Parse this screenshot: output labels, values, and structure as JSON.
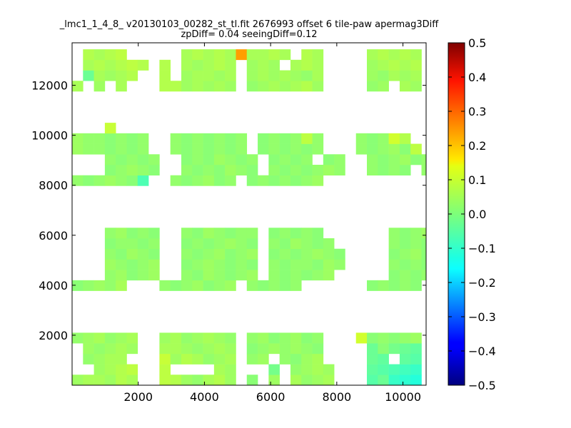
{
  "chart_data": {
    "type": "heatmap",
    "title": "_lmc1_1_4_8_ v20130103_00282_st_tl.fit 2676993 offset 6 tile-paw apermag3Diff",
    "subtitle": "zpDiff= 0.04 seeingDiff=0.12",
    "xlim": [
      0,
      10700
    ],
    "ylim": [
      0,
      13700
    ],
    "x_ticks": [
      2000,
      4000,
      6000,
      8000,
      10000
    ],
    "x_tick_labels": [
      "2000",
      "4000",
      "6000",
      "8000",
      "10000"
    ],
    "y_ticks": [
      2000,
      4000,
      6000,
      8000,
      10000,
      12000
    ],
    "y_tick_labels": [
      "2000",
      "4000",
      "6000",
      "8000",
      "10000",
      "12000"
    ],
    "colorbar": {
      "colormap": "jet",
      "range": [
        -0.5,
        0.5
      ],
      "ticks": [
        0.5,
        0.4,
        0.3,
        0.2,
        0.1,
        0.0,
        -0.1,
        -0.2,
        -0.3,
        -0.4,
        -0.5
      ],
      "tick_labels": [
        "0.5",
        "0.4",
        "0.3",
        "0.2",
        "0.1",
        "0.0",
        "−0.1",
        "−0.2",
        "−0.3",
        "−0.4",
        "−0.5"
      ]
    },
    "cell_size": [
      330,
      420
    ],
    "x_edges": [
      0,
      330,
      660,
      990,
      1320,
      1650,
      1980,
      2310,
      2640,
      2970,
      3300,
      3630,
      3960,
      4290,
      4620,
      4950,
      5280,
      5610,
      5940,
      6270,
      6600,
      6930,
      7260,
      7590,
      7920,
      8250,
      8580,
      8910,
      9240,
      9570,
      9900,
      10230,
      10560
    ],
    "y_edges": [
      0,
      420,
      840,
      1260,
      1680,
      2100,
      2520,
      2940,
      3360,
      3780,
      4200,
      4620,
      5040,
      5460,
      5880,
      6300,
      6720,
      7140,
      7560,
      7980,
      8400,
      8820,
      9240,
      9660,
      10080,
      10500,
      10920,
      11340,
      11760,
      12180,
      12600,
      13020,
      13440
    ],
    "grid": false,
    "rows": [
      {
        "y": 0,
        "x_start": 0,
        "values": [
          0.03,
          0.04,
          0.04,
          0.03,
          0.05,
          0.04,
          null,
          null,
          0.06,
          0.05,
          0.03,
          0.02,
          0.04,
          0.05,
          0.03,
          null,
          0.01,
          null,
          0.03,
          null,
          0.04,
          0.02,
          0.03,
          0.04,
          null,
          null,
          null,
          -0.04,
          -0.02,
          -0.07,
          -0.08,
          -0.09
        ]
      },
      {
        "y": 420,
        "x_start": 0,
        "values": [
          null,
          null,
          0.03,
          0.04,
          0.05,
          0.06,
          null,
          null,
          0.06,
          null,
          null,
          null,
          null,
          0.04,
          0.03,
          null,
          null,
          null,
          -0.01,
          null,
          0.02,
          0.03,
          0.04,
          0.03,
          null,
          null,
          null,
          -0.03,
          -0.04,
          -0.05,
          -0.06,
          -0.07
        ]
      },
      {
        "y": 840,
        "x_start": 0,
        "values": [
          null,
          0.02,
          0.03,
          0.04,
          0.04,
          null,
          null,
          null,
          0.07,
          0.03,
          0.05,
          0.04,
          0.02,
          0.03,
          0.04,
          null,
          0.02,
          0.03,
          null,
          0.02,
          0.01,
          0.03,
          0.04,
          null,
          null,
          null,
          null,
          -0.02,
          -0.03,
          null,
          -0.03,
          -0.04
        ]
      },
      {
        "y": 1260,
        "x_start": 0,
        "values": [
          null,
          0.03,
          0.02,
          0.03,
          0.04,
          0.03,
          null,
          null,
          0.04,
          0.04,
          0.03,
          0.02,
          0.03,
          0.04,
          0.03,
          null,
          0.01,
          0.02,
          0.03,
          0.02,
          0.03,
          0.02,
          0.01,
          null,
          null,
          null,
          null,
          -0.02,
          0.01,
          -0.01,
          -0.02,
          -0.03
        ]
      },
      {
        "y": 1680,
        "x_start": 0,
        "values": [
          0.02,
          0.03,
          0.04,
          0.02,
          0.03,
          0.04,
          null,
          null,
          0.03,
          0.04,
          0.02,
          0.03,
          0.04,
          0.03,
          0.02,
          null,
          0.02,
          0.03,
          0.01,
          0.02,
          0.03,
          0.01,
          0.02,
          null,
          null,
          null,
          0.08,
          0.01,
          0.02,
          0.01,
          0.02,
          0.03
        ]
      },
      {
        "y": 3780,
        "x_start": 0,
        "values": [
          0.01,
          0.02,
          0.03,
          0.02,
          0.04,
          null,
          null,
          null,
          0.02,
          0.01,
          0.02,
          0.03,
          0.01,
          0.02,
          0.03,
          null,
          0.02,
          0.01,
          0.02,
          0.01,
          0.02,
          null,
          null,
          null,
          null,
          null,
          null,
          0.01,
          0.02,
          0.01,
          0.02,
          0.01
        ]
      },
      {
        "y": 4200,
        "x_start": 990,
        "values": [
          0.02,
          0.03,
          0.01,
          0.02,
          0.03,
          null,
          null,
          0.02,
          0.01,
          0.03,
          0.02,
          0.01,
          0.02,
          0.03,
          null,
          0.02,
          0.01,
          0.02,
          0.01,
          0.02,
          0.03,
          null,
          null,
          null,
          null,
          null,
          0.01,
          0.02,
          0.01,
          0.02,
          0.01
        ]
      },
      {
        "y": 4620,
        "x_start": 990,
        "values": [
          0.03,
          0.02,
          0.01,
          0.02,
          0.03,
          null,
          null,
          0.01,
          0.02,
          0.03,
          0.02,
          0.01,
          0.02,
          0.01,
          null,
          0.02,
          0.01,
          0.02,
          0.02,
          0.01,
          0.03,
          0.02,
          null,
          null,
          null,
          null,
          0.02,
          0.01,
          0.02,
          0.01,
          0.02
        ]
      },
      {
        "y": 5040,
        "x_start": 990,
        "values": [
          0.02,
          0.01,
          0.03,
          0.02,
          0.01,
          null,
          null,
          0.02,
          0.01,
          0.02,
          0.03,
          0.01,
          0.02,
          0.03,
          null,
          0.01,
          0.02,
          0.01,
          0.02,
          0.03,
          0.02,
          0.01,
          null,
          null,
          null,
          null,
          0.01,
          0.02,
          0.03,
          0.01,
          0.02
        ]
      },
      {
        "y": 5460,
        "x_start": 990,
        "values": [
          0.01,
          0.02,
          0.02,
          0.01,
          0.02,
          null,
          null,
          0.01,
          0.02,
          0.01,
          0.02,
          0.03,
          0.02,
          0.01,
          null,
          0.02,
          0.01,
          0.03,
          0.02,
          0.01,
          0.02,
          null,
          null,
          null,
          null,
          null,
          0.02,
          0.01,
          0.02,
          0.01,
          0.02
        ]
      },
      {
        "y": 5880,
        "x_start": 990,
        "values": [
          0.02,
          0.03,
          0.01,
          0.02,
          0.01,
          null,
          null,
          0.02,
          0.01,
          0.03,
          0.02,
          0.01,
          0.02,
          0.02,
          null,
          0.01,
          0.02,
          0.01,
          0.02,
          0.01,
          null,
          null,
          null,
          null,
          null,
          null,
          0.02,
          0.01,
          0.02,
          0.03,
          0.01
        ]
      },
      {
        "y": 7980,
        "x_start": 0,
        "values": [
          0.02,
          0.01,
          0.02,
          0.03,
          0.02,
          0.01,
          -0.05,
          null,
          null,
          0.02,
          0.01,
          0.02,
          0.03,
          0.01,
          0.02,
          null,
          0.01,
          0.02,
          0.01,
          0.02,
          0.01,
          0.02,
          0.03,
          null,
          null,
          null,
          null,
          null,
          null,
          null,
          null,
          null
        ]
      },
      {
        "y": 8400,
        "x_start": 990,
        "values": [
          0.01,
          0.02,
          0.03,
          0.02,
          0.01,
          null,
          null,
          0.02,
          0.01,
          0.02,
          0.01,
          0.03,
          0.02,
          0.01,
          null,
          0.02,
          0.01,
          0.02,
          0.01,
          0.02,
          0.03,
          0.02,
          null,
          null,
          0.02,
          0.01,
          0.02,
          0.01,
          null,
          0.02,
          0.03
        ]
      },
      {
        "y": 8820,
        "x_start": 990,
        "values": [
          0.02,
          0.01,
          0.02,
          0.01,
          0.02,
          null,
          null,
          0.01,
          0.02,
          0.01,
          0.03,
          0.02,
          0.01,
          0.02,
          null,
          0.01,
          0.02,
          0.01,
          0.02,
          null,
          0.01,
          0.02,
          null,
          null,
          0.02,
          0.01,
          0.02,
          0.03,
          0.01,
          0.02,
          0.09
        ]
      },
      {
        "y": 9240,
        "x_start": 0,
        "values": [
          0.03,
          0.02,
          0.02,
          0.01,
          0.02,
          0.01,
          0.02,
          null,
          null,
          0.02,
          0.01,
          0.02,
          0.01,
          0.02,
          0.01,
          0.02,
          null,
          0.01,
          0.02,
          0.01,
          0.02,
          0.01,
          0.02,
          null,
          null,
          null,
          0.02,
          0.01,
          0.02,
          0.03,
          0.01,
          0.06
        ]
      },
      {
        "y": 9660,
        "x_start": 0,
        "values": [
          0.03,
          0.02,
          0.02,
          0.01,
          0.02,
          0.01,
          0.02,
          null,
          null,
          0.02,
          0.01,
          0.02,
          0.01,
          0.02,
          0.01,
          0.02,
          null,
          0.01,
          0.02,
          0.01,
          0.02,
          0.06,
          0.02,
          null,
          null,
          null,
          0.02,
          0.01,
          0.02,
          0.08,
          0.05,
          null
        ]
      },
      {
        "y": 10080,
        "x_start": 0,
        "values": [
          null,
          null,
          null,
          0.07,
          null,
          null,
          null,
          null,
          null,
          null,
          null,
          null,
          null,
          null,
          null,
          null,
          null,
          null,
          null,
          null,
          null,
          null,
          null,
          null,
          null,
          null,
          null,
          null,
          null,
          null,
          null,
          null
        ]
      },
      {
        "y": 11760,
        "x_start": 0,
        "values": [
          0.04,
          null,
          0.03,
          null,
          0.04,
          null,
          null,
          null,
          0.05,
          0.05,
          0.03,
          0.04,
          0.03,
          0.04,
          0.03,
          null,
          0.02,
          0.03,
          0.04,
          0.03,
          0.04,
          0.05,
          0.03,
          null,
          null,
          null,
          null,
          0.02,
          0.03,
          null,
          0.04,
          0.03
        ]
      },
      {
        "y": 12180,
        "x_start": 0,
        "values": [
          null,
          -0.02,
          0.04,
          0.03,
          0.04,
          0.05,
          null,
          null,
          0.05,
          null,
          0.03,
          0.04,
          0.04,
          0.03,
          0.04,
          null,
          0.03,
          0.04,
          0.03,
          0.04,
          0.03,
          0.02,
          0.04,
          null,
          null,
          null,
          null,
          0.03,
          0.02,
          0.04,
          0.03,
          0.04
        ]
      },
      {
        "y": 12600,
        "x_start": 0,
        "values": [
          null,
          0.04,
          0.05,
          0.04,
          0.05,
          0.06,
          0.05,
          null,
          0.05,
          null,
          0.04,
          0.03,
          0.04,
          0.05,
          0.04,
          null,
          0.03,
          0.04,
          0.03,
          null,
          0.04,
          0.05,
          0.04,
          null,
          null,
          null,
          null,
          0.03,
          0.04,
          0.05,
          0.04,
          0.05
        ]
      },
      {
        "y": 13020,
        "x_start": 0,
        "values": [
          null,
          0.05,
          0.04,
          0.05,
          0.06,
          null,
          null,
          null,
          null,
          null,
          0.04,
          0.05,
          0.04,
          0.05,
          0.04,
          0.22,
          0.04,
          0.04,
          0.05,
          0.04,
          null,
          0.05,
          0.04,
          null,
          null,
          null,
          null,
          0.04,
          0.05,
          0.04,
          0.05,
          0.04
        ]
      }
    ]
  }
}
